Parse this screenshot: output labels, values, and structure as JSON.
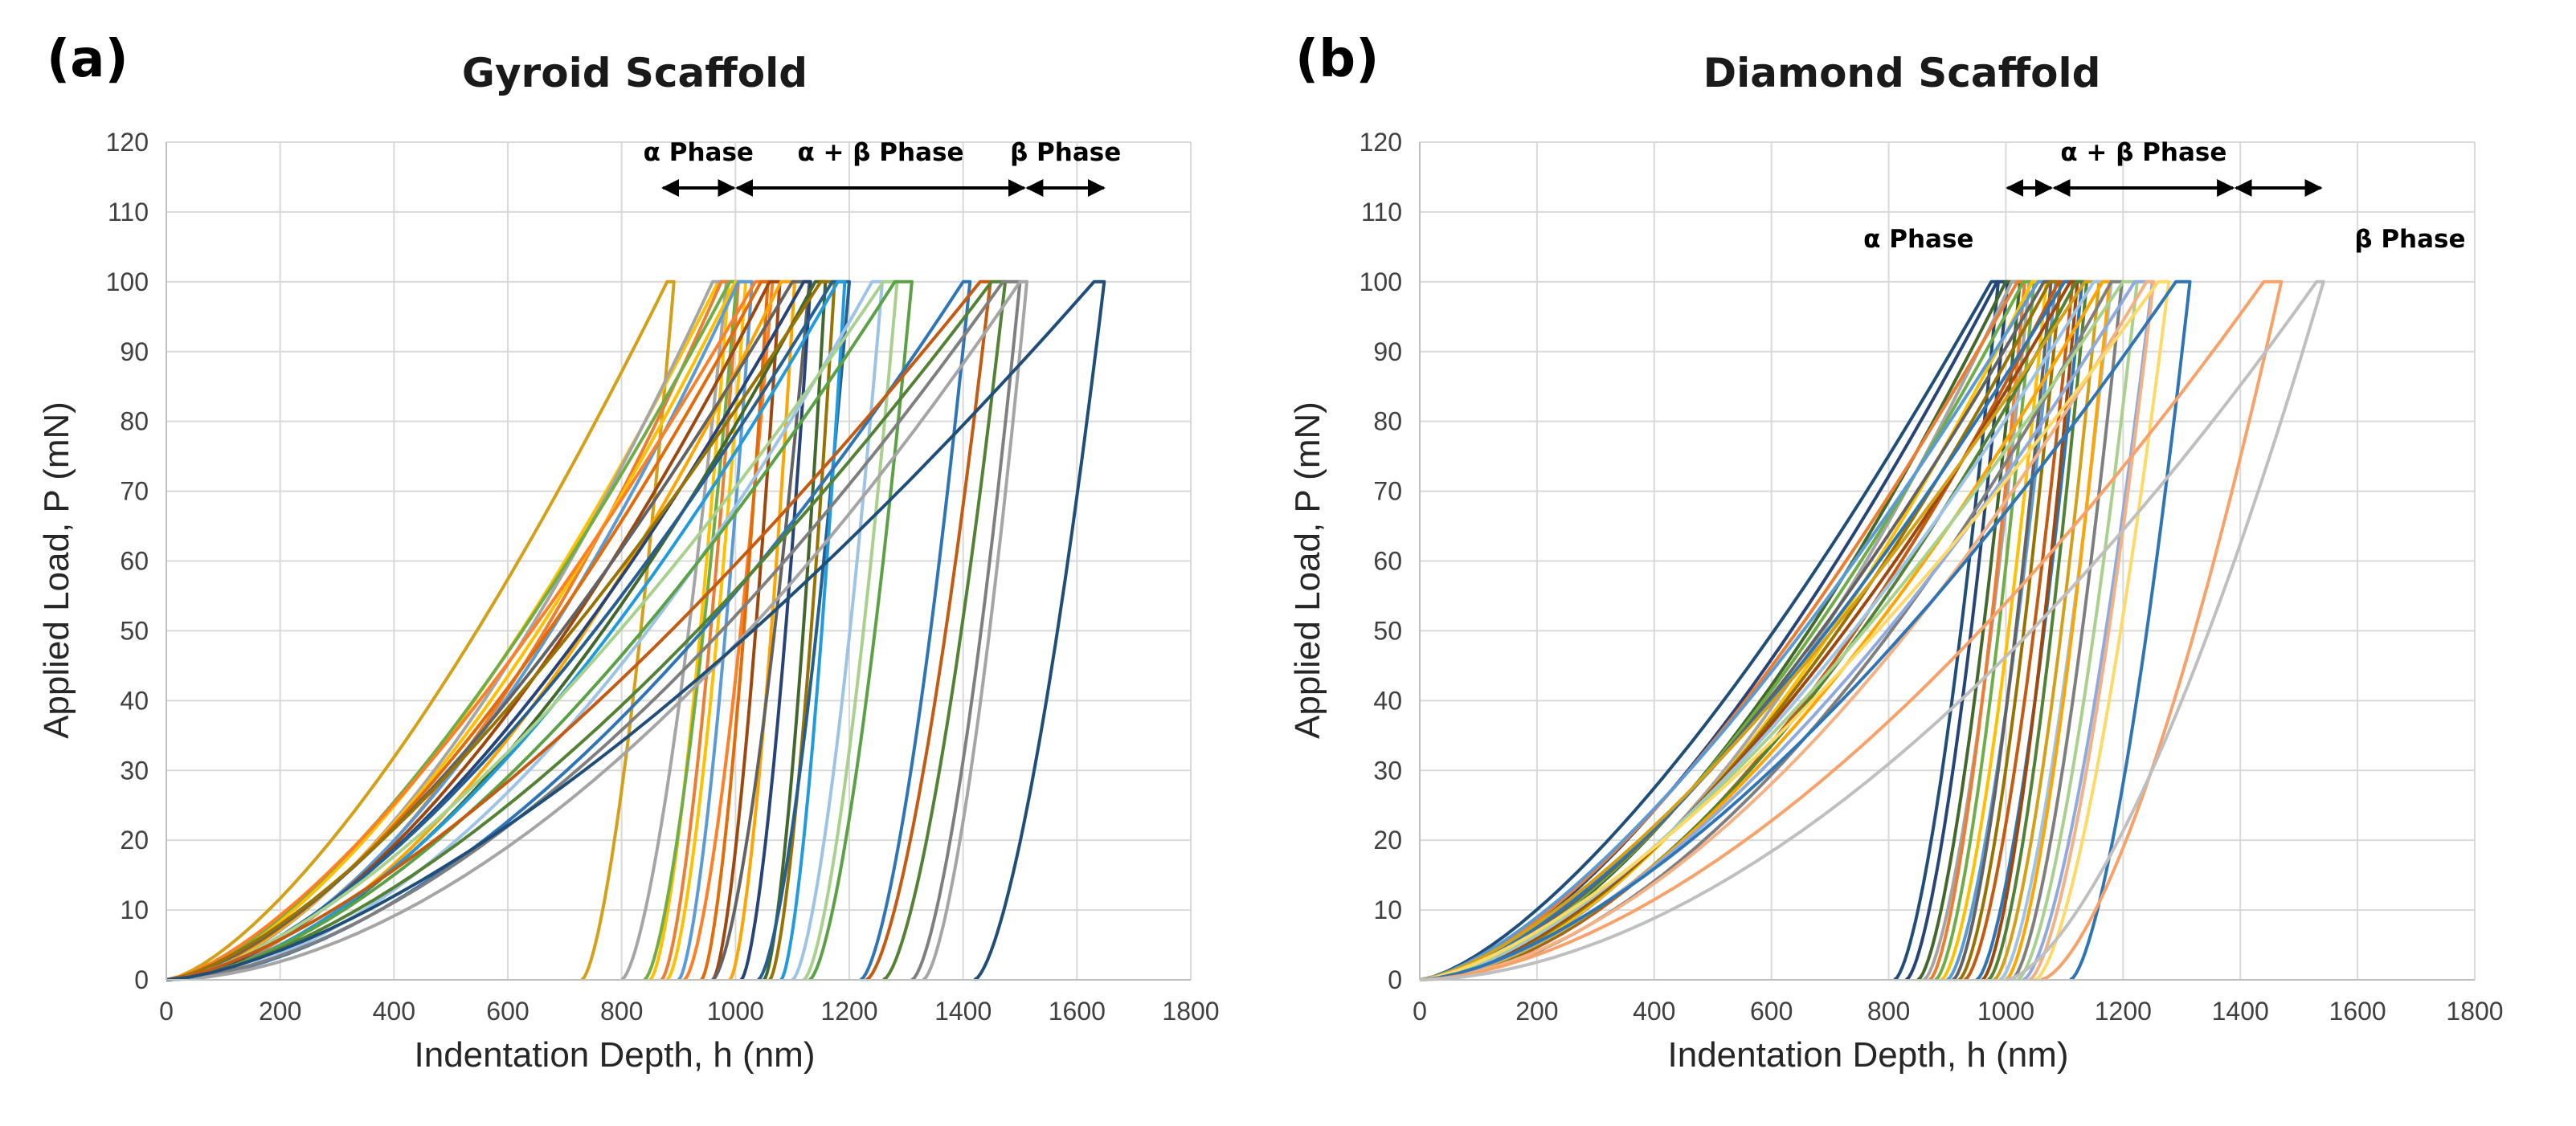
{
  "chart_data": [
    {
      "type": "line",
      "panel_label": "(a)",
      "title": "Gyroid Scaffold",
      "xlabel": "Indentation Depth, h (nm)",
      "ylabel": "Applied Load, P (mN)",
      "xlim": [
        0,
        1800
      ],
      "ylim": [
        0,
        120
      ],
      "xticks": [
        0,
        200,
        400,
        600,
        800,
        1000,
        1200,
        1400,
        1600,
        1800
      ],
      "yticks": [
        0,
        10,
        20,
        30,
        40,
        50,
        60,
        70,
        80,
        90,
        100,
        110,
        120
      ],
      "grid": true,
      "phases": [
        {
          "label": "α Phase",
          "from": 870,
          "to": 1000
        },
        {
          "label": "α + β Phase",
          "from": 1000,
          "to": 1510
        },
        {
          "label": "β Phase",
          "from": 1510,
          "to": 1650
        }
      ],
      "phase_label_row": "above",
      "curves": [
        {
          "h_max": 880,
          "h_final": 730,
          "color": "#D4A017"
        },
        {
          "h_max": 970,
          "h_final": 850,
          "color": "#FFC000"
        },
        {
          "h_max": 960,
          "h_final": 800,
          "color": "#A5A5A5"
        },
        {
          "h_max": 975,
          "h_final": 870,
          "color": "#ED7D31"
        },
        {
          "h_max": 990,
          "h_final": 840,
          "color": "#70AD47"
        },
        {
          "h_max": 1000,
          "h_final": 880,
          "color": "#FFC000"
        },
        {
          "h_max": 1005,
          "h_final": 900,
          "color": "#5B9BD5"
        },
        {
          "h_max": 1035,
          "h_final": 910,
          "color": "#FF7F27"
        },
        {
          "h_max": 1045,
          "h_final": 940,
          "color": "#E36C09"
        },
        {
          "h_max": 1060,
          "h_final": 960,
          "color": "#9E480E"
        },
        {
          "h_max": 1080,
          "h_final": 990,
          "color": "#FFA500"
        },
        {
          "h_max": 1100,
          "h_final": 960,
          "color": "#636363"
        },
        {
          "h_max": 1120,
          "h_final": 1010,
          "color": "#264478"
        },
        {
          "h_max": 1140,
          "h_final": 1050,
          "color": "#43682B"
        },
        {
          "h_max": 1150,
          "h_final": 1060,
          "color": "#997300"
        },
        {
          "h_max": 1170,
          "h_final": 1040,
          "color": "#255E91"
        },
        {
          "h_max": 1180,
          "h_final": 1080,
          "color": "#1F9BDE"
        },
        {
          "h_max": 1240,
          "h_final": 1100,
          "color": "#9DC3E6"
        },
        {
          "h_max": 1260,
          "h_final": 1120,
          "color": "#A9D18E"
        },
        {
          "h_max": 1280,
          "h_final": 1130,
          "color": "#5BA145"
        },
        {
          "h_max": 1400,
          "h_final": 1220,
          "color": "#2E75B6"
        },
        {
          "h_max": 1430,
          "h_final": 1230,
          "color": "#C55A11"
        },
        {
          "h_max": 1450,
          "h_final": 1260,
          "color": "#548235"
        },
        {
          "h_max": 1470,
          "h_final": 1310,
          "color": "#7F7F7F"
        },
        {
          "h_max": 1500,
          "h_final": 1330,
          "color": "#A5A5A5"
        },
        {
          "h_max": 1630,
          "h_final": 1420,
          "color": "#1F4E79"
        }
      ]
    },
    {
      "type": "line",
      "panel_label": "(b)",
      "title": "Diamond Scaffold",
      "xlabel": "Indentation Depth, h (nm)",
      "ylabel": "Applied Load, P (mN)",
      "xlim": [
        0,
        1800
      ],
      "ylim": [
        0,
        120
      ],
      "xticks": [
        0,
        200,
        400,
        600,
        800,
        1000,
        1200,
        1400,
        1600,
        1800
      ],
      "yticks": [
        0,
        10,
        20,
        30,
        40,
        50,
        60,
        70,
        80,
        90,
        100,
        110,
        120
      ],
      "grid": true,
      "phases": [
        {
          "label": "α Phase",
          "from": 1000,
          "to": 1080
        },
        {
          "label": "α + β Phase",
          "from": 1080,
          "to": 1390
        },
        {
          "label": "β Phase",
          "from": 1390,
          "to": 1540
        }
      ],
      "phase_label_row": "split",
      "curves": [
        {
          "h_max": 975,
          "h_final": 810,
          "color": "#1F4E79"
        },
        {
          "h_max": 985,
          "h_final": 830,
          "color": "#264478"
        },
        {
          "h_max": 1000,
          "h_final": 850,
          "color": "#43682B"
        },
        {
          "h_max": 1010,
          "h_final": 860,
          "color": "#A5A5A5"
        },
        {
          "h_max": 1020,
          "h_final": 870,
          "color": "#ED7D31"
        },
        {
          "h_max": 1030,
          "h_final": 880,
          "color": "#70AD47"
        },
        {
          "h_max": 1045,
          "h_final": 890,
          "color": "#FFC000"
        },
        {
          "h_max": 1055,
          "h_final": 900,
          "color": "#5B9BD5"
        },
        {
          "h_max": 1065,
          "h_final": 910,
          "color": "#636363"
        },
        {
          "h_max": 1075,
          "h_final": 920,
          "color": "#997300"
        },
        {
          "h_max": 1090,
          "h_final": 930,
          "color": "#C55A11"
        },
        {
          "h_max": 1100,
          "h_final": 950,
          "color": "#2E75B6"
        },
        {
          "h_max": 1110,
          "h_final": 960,
          "color": "#9E480E"
        },
        {
          "h_max": 1120,
          "h_final": 970,
          "color": "#548235"
        },
        {
          "h_max": 1135,
          "h_final": 980,
          "color": "#D4A017"
        },
        {
          "h_max": 1150,
          "h_final": 990,
          "color": "#9DC3E6"
        },
        {
          "h_max": 1165,
          "h_final": 1000,
          "color": "#FFA500"
        },
        {
          "h_max": 1180,
          "h_final": 1010,
          "color": "#7F7F7F"
        },
        {
          "h_max": 1200,
          "h_final": 1020,
          "color": "#A9D18E"
        },
        {
          "h_max": 1220,
          "h_final": 1030,
          "color": "#8FAADC"
        },
        {
          "h_max": 1240,
          "h_final": 1040,
          "color": "#F4B183"
        },
        {
          "h_max": 1260,
          "h_final": 1050,
          "color": "#FFD966"
        },
        {
          "h_max": 1290,
          "h_final": 1110,
          "color": "#2E75B6"
        },
        {
          "h_max": 1440,
          "h_final": 1060,
          "color": "#F8A26A"
        },
        {
          "h_max": 1530,
          "h_final": 1000,
          "color": "#BFBFBF"
        }
      ]
    }
  ]
}
